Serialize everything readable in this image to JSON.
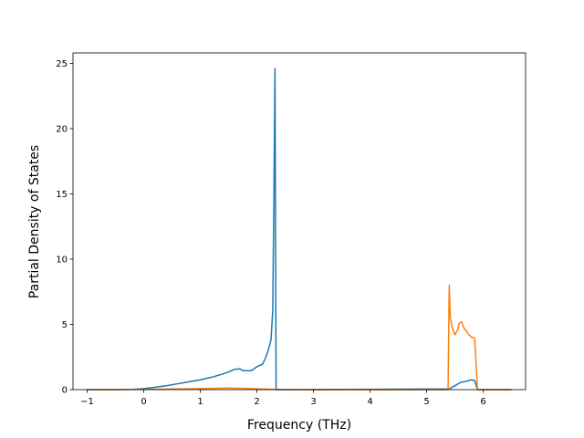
{
  "chart_data": {
    "type": "line",
    "title": "",
    "xlabel": "Frequency (THz)",
    "ylabel": "Partial Density of States",
    "xlim": [
      -1.25,
      6.75
    ],
    "ylim": [
      0,
      25.8
    ],
    "xticks": [
      -1,
      0,
      1,
      2,
      3,
      4,
      5,
      6
    ],
    "yticks": [
      0,
      5,
      10,
      15,
      20,
      25
    ],
    "xtick_labels": [
      "−1",
      "0",
      "1",
      "2",
      "3",
      "4",
      "5",
      "6"
    ],
    "ytick_labels": [
      "0",
      "5",
      "10",
      "15",
      "20",
      "25"
    ],
    "grid": false,
    "legend": "none",
    "series": [
      {
        "color": "#1f77b4",
        "x": [
          -1.0,
          -0.5,
          -0.2,
          0.0,
          0.2,
          0.4,
          0.6,
          0.8,
          1.0,
          1.2,
          1.4,
          1.5,
          1.6,
          1.7,
          1.75,
          1.8,
          1.9,
          1.95,
          2.0,
          2.1,
          2.15,
          2.2,
          2.25,
          2.28,
          2.3,
          2.32,
          2.33,
          2.34,
          2.35,
          5.4,
          5.5,
          5.6,
          5.7,
          5.8,
          5.85,
          5.9,
          6.5
        ],
        "y": [
          0.0,
          0.0,
          0.02,
          0.08,
          0.18,
          0.3,
          0.45,
          0.6,
          0.75,
          0.95,
          1.2,
          1.35,
          1.55,
          1.6,
          1.45,
          1.45,
          1.45,
          1.6,
          1.75,
          1.95,
          2.4,
          3.0,
          3.8,
          6.0,
          14.0,
          24.6,
          12.0,
          0.0,
          0.0,
          0.05,
          0.3,
          0.55,
          0.65,
          0.75,
          0.7,
          0.0,
          0.0
        ]
      },
      {
        "color": "#ff7f0e",
        "x": [
          -1.0,
          0.0,
          0.5,
          1.0,
          1.5,
          1.8,
          2.3,
          3.0,
          4.0,
          5.0,
          5.38,
          5.4,
          5.42,
          5.45,
          5.5,
          5.55,
          5.58,
          5.62,
          5.65,
          5.7,
          5.75,
          5.8,
          5.83,
          5.85,
          5.9,
          6.5
        ],
        "y": [
          0.0,
          0.02,
          0.05,
          0.08,
          0.12,
          0.1,
          0.02,
          0.0,
          0.0,
          0.0,
          0.0,
          8.0,
          5.5,
          4.8,
          4.2,
          4.6,
          5.1,
          5.2,
          4.8,
          4.5,
          4.2,
          4.0,
          4.0,
          3.9,
          0.0,
          0.0
        ]
      }
    ]
  }
}
